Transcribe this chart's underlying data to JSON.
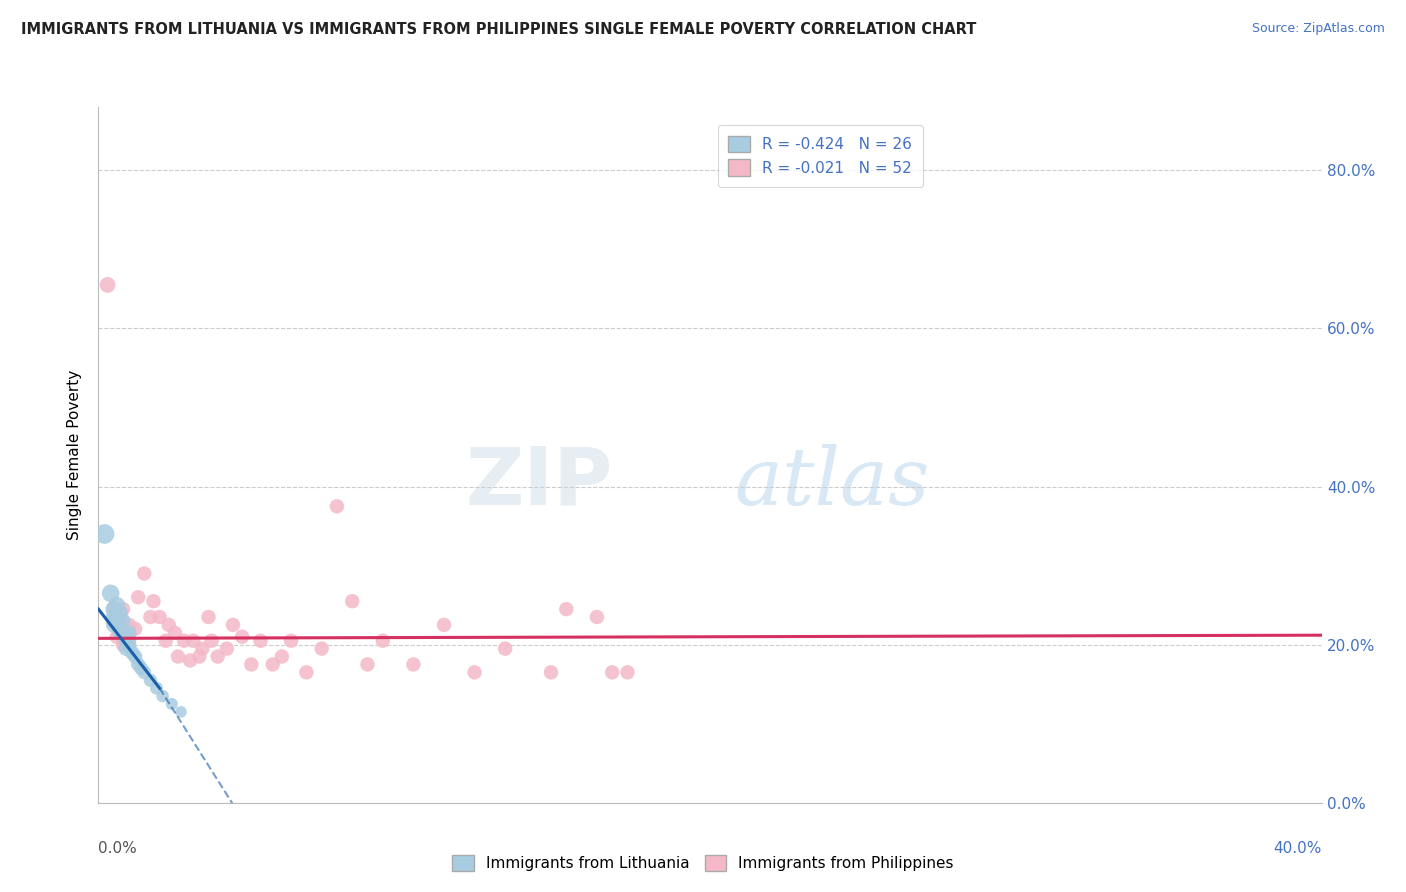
{
  "title": "IMMIGRANTS FROM LITHUANIA VS IMMIGRANTS FROM PHILIPPINES SINGLE FEMALE POVERTY CORRELATION CHART",
  "source": "Source: ZipAtlas.com",
  "ylabel": "Single Female Poverty",
  "legend_blue_label": "R = -0.424   N = 26",
  "legend_pink_label": "R = -0.021   N = 52",
  "legend_bottom_blue": "Immigrants from Lithuania",
  "legend_bottom_pink": "Immigrants from Philippines",
  "blue_color": "#a8cce0",
  "pink_color": "#f4b8c8",
  "blue_line_color": "#1a5fa8",
  "pink_line_color": "#d63060",
  "grid_color": "#cccccc",
  "ytick_color": "#4472c4",
  "xlim": [
    0.0,
    0.4
  ],
  "ylim": [
    0.0,
    0.88
  ],
  "ytick_vals": [
    0.0,
    0.2,
    0.4,
    0.6,
    0.8
  ],
  "ytick_labels": [
    "0.0%",
    "20.0%",
    "40.0%",
    "60.0%",
    "80.0%"
  ],
  "blue_scatter": [
    [
      0.002,
      0.34
    ],
    [
      0.004,
      0.265
    ],
    [
      0.005,
      0.245
    ],
    [
      0.005,
      0.235
    ],
    [
      0.005,
      0.225
    ],
    [
      0.006,
      0.25
    ],
    [
      0.006,
      0.235
    ],
    [
      0.007,
      0.24
    ],
    [
      0.007,
      0.22
    ],
    [
      0.007,
      0.215
    ],
    [
      0.008,
      0.23
    ],
    [
      0.008,
      0.215
    ],
    [
      0.009,
      0.205
    ],
    [
      0.009,
      0.195
    ],
    [
      0.01,
      0.215
    ],
    [
      0.01,
      0.2
    ],
    [
      0.011,
      0.19
    ],
    [
      0.012,
      0.185
    ],
    [
      0.013,
      0.175
    ],
    [
      0.014,
      0.17
    ],
    [
      0.015,
      0.165
    ],
    [
      0.017,
      0.155
    ],
    [
      0.019,
      0.145
    ],
    [
      0.021,
      0.135
    ],
    [
      0.024,
      0.125
    ],
    [
      0.027,
      0.115
    ]
  ],
  "pink_scatter": [
    [
      0.003,
      0.655
    ],
    [
      0.005,
      0.245
    ],
    [
      0.005,
      0.23
    ],
    [
      0.006,
      0.21
    ],
    [
      0.007,
      0.235
    ],
    [
      0.007,
      0.215
    ],
    [
      0.008,
      0.2
    ],
    [
      0.008,
      0.245
    ],
    [
      0.009,
      0.2
    ],
    [
      0.01,
      0.225
    ],
    [
      0.01,
      0.205
    ],
    [
      0.012,
      0.22
    ],
    [
      0.013,
      0.26
    ],
    [
      0.015,
      0.29
    ],
    [
      0.017,
      0.235
    ],
    [
      0.018,
      0.255
    ],
    [
      0.02,
      0.235
    ],
    [
      0.022,
      0.205
    ],
    [
      0.023,
      0.225
    ],
    [
      0.025,
      0.215
    ],
    [
      0.026,
      0.185
    ],
    [
      0.028,
      0.205
    ],
    [
      0.03,
      0.18
    ],
    [
      0.031,
      0.205
    ],
    [
      0.033,
      0.185
    ],
    [
      0.034,
      0.195
    ],
    [
      0.036,
      0.235
    ],
    [
      0.037,
      0.205
    ],
    [
      0.039,
      0.185
    ],
    [
      0.042,
      0.195
    ],
    [
      0.044,
      0.225
    ],
    [
      0.047,
      0.21
    ],
    [
      0.05,
      0.175
    ],
    [
      0.053,
      0.205
    ],
    [
      0.057,
      0.175
    ],
    [
      0.06,
      0.185
    ],
    [
      0.063,
      0.205
    ],
    [
      0.068,
      0.165
    ],
    [
      0.073,
      0.195
    ],
    [
      0.078,
      0.375
    ],
    [
      0.083,
      0.255
    ],
    [
      0.088,
      0.175
    ],
    [
      0.093,
      0.205
    ],
    [
      0.103,
      0.175
    ],
    [
      0.113,
      0.225
    ],
    [
      0.123,
      0.165
    ],
    [
      0.133,
      0.195
    ],
    [
      0.148,
      0.165
    ],
    [
      0.153,
      0.245
    ],
    [
      0.163,
      0.235
    ],
    [
      0.168,
      0.165
    ],
    [
      0.173,
      0.165
    ]
  ],
  "blue_dot_sizes": [
    200,
    160,
    140,
    130,
    125,
    145,
    135,
    130,
    125,
    120,
    125,
    120,
    115,
    110,
    120,
    115,
    110,
    108,
    105,
    100,
    98,
    92,
    88,
    82,
    76,
    70
  ],
  "pink_dot_sizes": [
    130,
    115,
    112,
    110,
    110,
    108,
    108,
    112,
    108,
    110,
    108,
    108,
    108,
    108,
    108,
    108,
    108,
    108,
    108,
    108,
    108,
    108,
    108,
    108,
    108,
    108,
    108,
    108,
    108,
    108,
    108,
    108,
    108,
    108,
    108,
    108,
    108,
    108,
    108,
    108,
    108,
    108,
    108,
    108,
    108,
    108,
    108,
    108,
    108,
    108,
    108,
    108
  ]
}
